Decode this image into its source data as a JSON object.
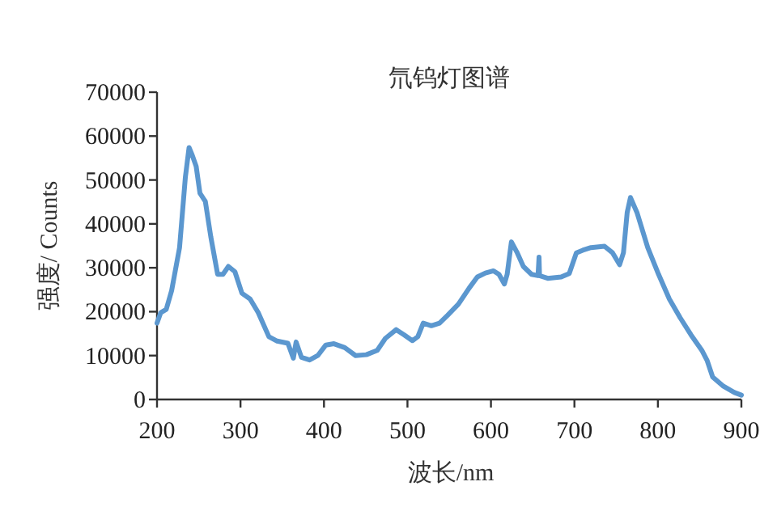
{
  "chart_data": {
    "type": "line",
    "title": "氘钨灯图谱",
    "xlabel": "波长/nm",
    "ylabel": "强度/ Counts",
    "x": [
      200,
      204.5,
      211,
      217.5,
      227,
      234,
      238.4,
      242.3,
      246.9,
      251.4,
      257.9,
      264.4,
      272.6,
      279,
      285.5,
      293.3,
      301.7,
      311.5,
      321.2,
      334,
      343.9,
      356.8,
      363.3,
      366.6,
      373,
      382.8,
      392.5,
      402.2,
      411.9,
      424.9,
      437.9,
      450.8,
      463.8,
      473.5,
      486.5,
      496.2,
      505.9,
      512.4,
      518.9,
      528.6,
      538.4,
      548.1,
      561,
      574,
      583.7,
      593.4,
      603.1,
      609.6,
      616.1,
      619.4,
      624.5,
      631,
      638.8,
      648.6,
      656.4,
      657.6,
      658.2,
      668,
      684.1,
      693.8,
      702.3,
      710,
      719.8,
      736,
      745.7,
      754.1,
      758.7,
      763.2,
      767.1,
      774.9,
      787.8,
      800.8,
      813.7,
      826.7,
      839.7,
      852.6,
      859.1,
      865.6,
      878.6,
      891.6,
      900
    ],
    "series": [
      {
        "color": "#5b97cf",
        "values": [
          17400,
          19800,
          20500,
          24800,
          34600,
          50700,
          57400,
          55600,
          53100,
          47000,
          45100,
          37100,
          28500,
          28500,
          30300,
          29100,
          24200,
          22900,
          19800,
          14300,
          13300,
          12800,
          9400,
          13100,
          9600,
          9000,
          10000,
          12400,
          12700,
          11800,
          10000,
          10200,
          11200,
          13900,
          15900,
          14700,
          13400,
          14300,
          17400,
          16800,
          17400,
          19200,
          21700,
          25400,
          27900,
          28800,
          29300,
          28500,
          26300,
          28500,
          35900,
          33600,
          30300,
          28500,
          28200,
          32400,
          28200,
          27600,
          27900,
          28700,
          33400,
          34000,
          34600,
          34900,
          33400,
          30700,
          33400,
          42600,
          46000,
          42600,
          34600,
          28500,
          22900,
          18600,
          14700,
          11200,
          8800,
          5100,
          3000,
          1600,
          1000
        ]
      }
    ],
    "xlim": [
      200,
      900
    ],
    "ylim": [
      0,
      70000
    ],
    "xticks": [
      200,
      300,
      400,
      500,
      600,
      700,
      800,
      900
    ],
    "yticks": [
      0,
      10000,
      20000,
      30000,
      40000,
      50000,
      60000,
      70000
    ]
  }
}
